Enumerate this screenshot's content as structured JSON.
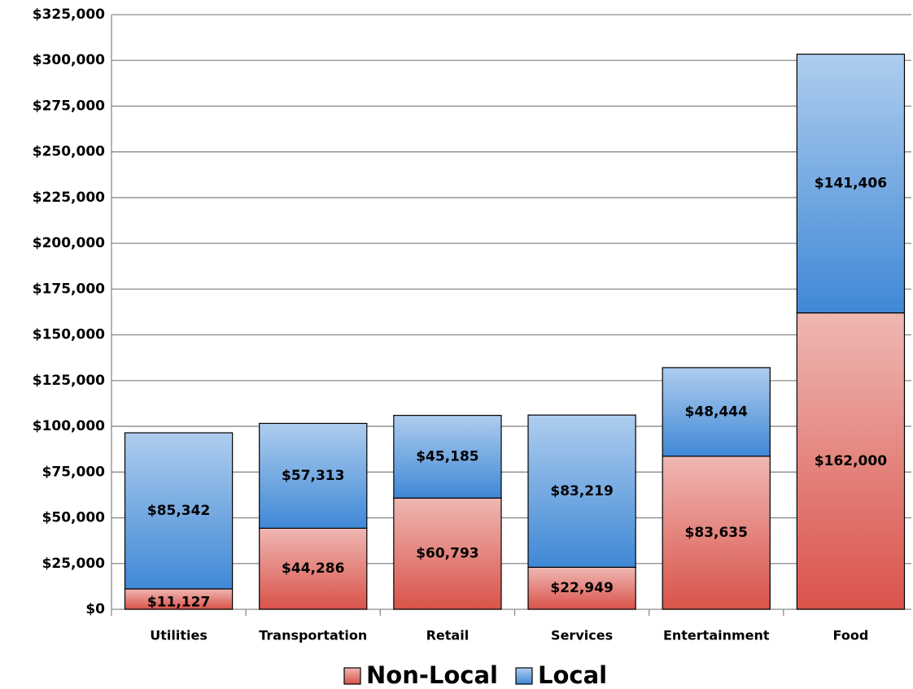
{
  "chart_data": {
    "type": "stacked_bar",
    "categories": [
      "Utilities",
      "Transportation",
      "Retail",
      "Services",
      "Entertainment",
      "Food"
    ],
    "series": [
      {
        "name": "Non-Local",
        "color": "#d9534a",
        "values": [
          11127,
          44286,
          60793,
          22949,
          83635,
          162000
        ],
        "value_labels": [
          "$11,127",
          "$44,286",
          "$60,793",
          "$22,949",
          "$83,635",
          "$162,000"
        ]
      },
      {
        "name": "Local",
        "color": "#3f88d6",
        "values": [
          85342,
          57313,
          45185,
          83219,
          48444,
          141406
        ],
        "value_labels": [
          "$85,342",
          "$57,313",
          "$45,185",
          "$83,219",
          "$48,444",
          "$141,406"
        ]
      }
    ],
    "ylim": [
      0,
      325000
    ],
    "yticks": [
      {
        "value": 0,
        "label": "$0"
      },
      {
        "value": 25000,
        "label": "$25,000"
      },
      {
        "value": 50000,
        "label": "$50,000"
      },
      {
        "value": 75000,
        "label": "$75,000"
      },
      {
        "value": 100000,
        "label": "$100,000"
      },
      {
        "value": 125000,
        "label": "$125,000"
      },
      {
        "value": 150000,
        "label": "$150,000"
      },
      {
        "value": 175000,
        "label": "$175,000"
      },
      {
        "value": 200000,
        "label": "$200,000"
      },
      {
        "value": 225000,
        "label": "$225,000"
      },
      {
        "value": 250000,
        "label": "$250,000"
      },
      {
        "value": 275000,
        "label": "$275,000"
      },
      {
        "value": 300000,
        "label": "$300,000"
      },
      {
        "value": 325000,
        "label": "$325,000"
      }
    ],
    "grid": true,
    "legend": "bottom"
  }
}
